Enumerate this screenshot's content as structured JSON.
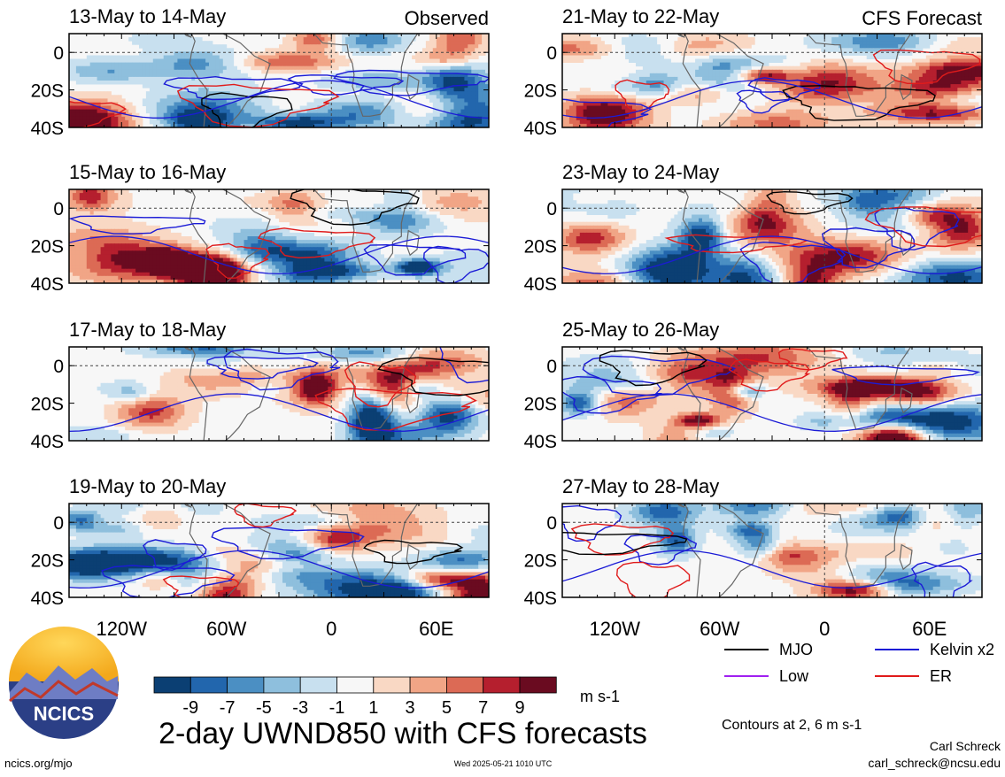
{
  "colors": {
    "scale": [
      "#0b3f73",
      "#2266ad",
      "#4b8fc3",
      "#8ebfdd",
      "#c8e0ef",
      "#f7f7f7",
      "#f9d8c4",
      "#f1a586",
      "#dc6a55",
      "#b51f2e",
      "#6a0b20"
    ],
    "mjo": "#000000",
    "kelvin": "#1b1bd6",
    "low": "#a020f0",
    "er": "#e01b1b"
  },
  "chart_data": [
    {
      "type": "heatmap",
      "title": "13-May to 14-May",
      "label": "Observed",
      "seed": 3,
      "ylim": [
        -40,
        10
      ],
      "xlim": [
        -150,
        90
      ],
      "yticks": [
        "0",
        "20S",
        "40S"
      ]
    },
    {
      "type": "heatmap",
      "title": "15-May to 16-May",
      "seed": 7,
      "ylim": [
        -40,
        10
      ],
      "xlim": [
        -150,
        90
      ],
      "yticks": [
        "0",
        "20S",
        "40S"
      ]
    },
    {
      "type": "heatmap",
      "title": "17-May to 18-May",
      "seed": 11,
      "ylim": [
        -40,
        10
      ],
      "xlim": [
        -150,
        90
      ],
      "yticks": [
        "0",
        "20S",
        "40S"
      ]
    },
    {
      "type": "heatmap",
      "title": "19-May to 20-May",
      "seed": 17,
      "ylim": [
        -40,
        10
      ],
      "xlim": [
        -150,
        90
      ],
      "yticks": [
        "0",
        "20S",
        "40S"
      ]
    },
    {
      "type": "heatmap",
      "title": "21-May to 22-May",
      "label": "CFS Forecast",
      "seed": 23,
      "ylim": [
        -40,
        10
      ],
      "xlim": [
        -150,
        90
      ],
      "yticks": [
        "0",
        "20S",
        "40S"
      ]
    },
    {
      "type": "heatmap",
      "title": "23-May to 24-May",
      "seed": 29,
      "ylim": [
        -40,
        10
      ],
      "xlim": [
        -150,
        90
      ],
      "yticks": [
        "0",
        "20S",
        "40S"
      ]
    },
    {
      "type": "heatmap",
      "title": "25-May to 26-May",
      "seed": 31,
      "ylim": [
        -40,
        10
      ],
      "xlim": [
        -150,
        90
      ],
      "yticks": [
        "0",
        "20S",
        "40S"
      ]
    },
    {
      "type": "heatmap",
      "title": "27-May to 28-May",
      "seed": 37,
      "ylim": [
        -40,
        10
      ],
      "xlim": [
        -150,
        90
      ],
      "yticks": [
        "0",
        "20S",
        "40S"
      ]
    }
  ],
  "xticks": [
    "120W",
    "60W",
    "0",
    "60E"
  ],
  "xtick_values": [
    -120,
    -60,
    0,
    60
  ],
  "colorbar": {
    "ticks": [
      "-9",
      "-7",
      "-5",
      "-3",
      "-1",
      "1",
      "3",
      "5",
      "7",
      "9"
    ],
    "units": "m s-1"
  },
  "legend": [
    {
      "name": "MJO",
      "color": "mjo"
    },
    {
      "name": "Kelvin x2",
      "color": "kelvin"
    },
    {
      "name": "Low",
      "color": "low"
    },
    {
      "name": "ER",
      "color": "er"
    }
  ],
  "contours_note": "Contours at 2, 6 m s-1",
  "main_title": "2-day UWND850 with CFS forecasts",
  "logo_text": "NCICS",
  "url": "ncics.org/mjo",
  "timestamp": "Wed 2025-05-21 1010 UTC",
  "author": "Carl Schreck",
  "email": "carl_schreck@ncsu.edu"
}
